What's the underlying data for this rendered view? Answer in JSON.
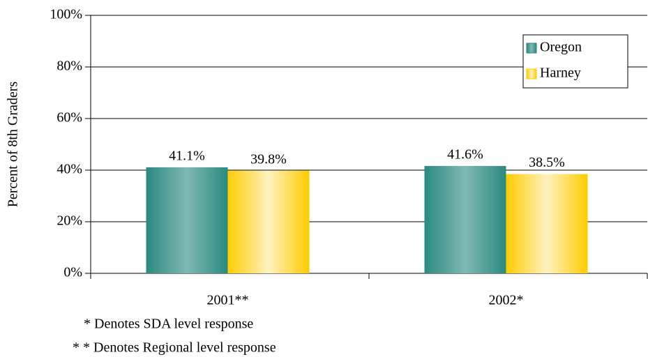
{
  "chart_data": {
    "type": "bar",
    "y_label": "Percent of 8th Graders",
    "categories": [
      "2001**",
      "2002*"
    ],
    "series": [
      {
        "name": "Oregon",
        "color": "#2a8a80",
        "values": [
          41.1,
          41.6
        ],
        "value_labels": [
          "41.1%",
          "41.6%"
        ]
      },
      {
        "name": "Harney",
        "color": "#ffcc00",
        "values": [
          39.8,
          38.5
        ],
        "value_labels": [
          "39.8%",
          "38.5%"
        ]
      }
    ],
    "ylim": [
      0,
      100
    ],
    "yticks": [
      {
        "value": 0,
        "label": "0%"
      },
      {
        "value": 20,
        "label": "20%"
      },
      {
        "value": 40,
        "label": "40%"
      },
      {
        "value": 60,
        "label": "60%"
      },
      {
        "value": 80,
        "label": "80%"
      },
      {
        "value": 100,
        "label": "100%"
      }
    ],
    "grid": true,
    "legend": "top-right",
    "annotations": [
      "* Denotes SDA level response",
      "* * Denotes Regional level response"
    ]
  }
}
